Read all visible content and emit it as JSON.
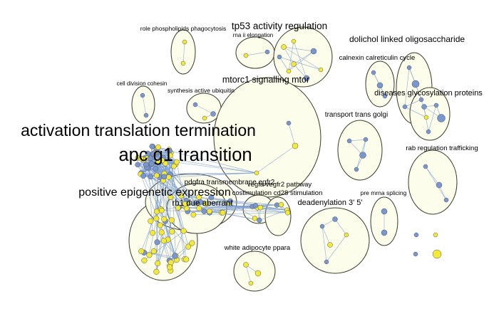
{
  "colors": {
    "node_yellow": "#f2e93a",
    "node_blue": "#7a96cf",
    "edge": "#7f9fd1",
    "cluster_fill": "#fdfdec",
    "cluster_stroke": "#3a3a2a"
  },
  "labels": {
    "role_phospholipids": "role phospholipids phagocytosis",
    "tp53": "tp53 activity regulation",
    "rna_ii": "rna ii elongation",
    "dolichol": "dolichol linked oligosaccharide",
    "calnexin": "calnexin calreticulin cycle",
    "mtorc1": "mtorc1 signalling mtor",
    "diseases_glyco": "diseases glycosylation proteins",
    "cell_division": "cell division cohesin",
    "synthesis_ubiquitin": "synthesis active ubiquitin",
    "transport_golgi": "transport trans golgi",
    "activation_translation": "activation translation termination",
    "apc_g1": "apc g1 transition",
    "rab_regulation": "rab regulation trafficking",
    "pdgfra": "pdgfra transmembrane egfr2",
    "vegfa": "vegfa vegfr2 pathway",
    "positive_epigenetic": "positive epigenetic expression",
    "costimulation": "costimulation cd28 stimulation",
    "pre_mrna": "pre mrna splicing",
    "rb1": "rb1 due aberrant",
    "deadenylation": "deadenylation 3' 5'",
    "white_adipocyte": "white adipocyte ppara"
  }
}
